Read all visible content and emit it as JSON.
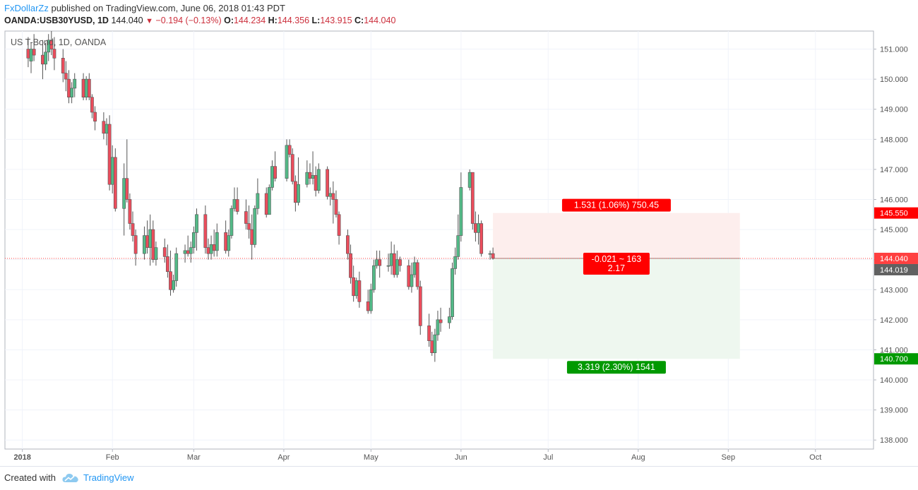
{
  "header": {
    "publisher": "FxDollarZz",
    "published_text": "published on TradingView.com, June 06, 2018 01:43 PDT",
    "symbol": "OANDA:USB30YUSD, 1D",
    "last": "144.040",
    "change": "−0.194 (−0.13%)",
    "open_label": "O:",
    "open": "144.234",
    "high_label": "H:",
    "high": "144.356",
    "low_label": "L:",
    "low": "143.915",
    "close_label": "C:",
    "close": "144.040"
  },
  "footer": {
    "created_with": "Created with",
    "brand": "TradingView"
  },
  "colors": {
    "up": "#53b987",
    "down": "#eb4d5c",
    "loss": "#ff0000",
    "profit": "#009900",
    "last_price": "#ff4040",
    "axis_text": "#555555"
  },
  "chart_data": {
    "type": "candlestick",
    "title": "US T-Bond, 1D, OANDA",
    "ylim": [
      137.7,
      151.6
    ],
    "y_ticks": [
      "138.000",
      "139.000",
      "140.000",
      "141.000",
      "142.000",
      "143.000",
      "144.000",
      "145.000",
      "146.000",
      "147.000",
      "148.000",
      "149.000",
      "150.000",
      "151.000"
    ],
    "x_ticks": [
      {
        "label": "2018",
        "date": "2018-01-01"
      },
      {
        "label": "Feb",
        "date": "2018-02-01"
      },
      {
        "label": "Mar",
        "date": "2018-03-01"
      },
      {
        "label": "Apr",
        "date": "2018-04-01"
      },
      {
        "label": "May",
        "date": "2018-05-01"
      },
      {
        "label": "Jun",
        "date": "2018-06-01"
      },
      {
        "label": "Jul",
        "date": "2018-07-01"
      },
      {
        "label": "Aug",
        "date": "2018-08-01"
      },
      {
        "label": "Sep",
        "date": "2018-09-01"
      },
      {
        "label": "Oct",
        "date": "2018-10-01"
      }
    ],
    "x_range": [
      "2017-12-26",
      "2018-10-21"
    ],
    "candles": [
      [
        "2018-01-03",
        151.0,
        151.4,
        150.4,
        150.7
      ],
      [
        "2018-01-04",
        150.6,
        151.2,
        150.2,
        151.0
      ],
      [
        "2018-01-05",
        151.0,
        151.5,
        150.6,
        150.8
      ],
      [
        "2018-01-08",
        150.8,
        151.3,
        150.0,
        150.5
      ],
      [
        "2018-01-09",
        150.5,
        151.2,
        150.3,
        150.9
      ],
      [
        "2018-01-10",
        150.9,
        151.5,
        150.6,
        151.3
      ],
      [
        "2018-01-11",
        151.3,
        151.6,
        150.8,
        151.0
      ],
      [
        "2018-01-12",
        151.0,
        151.4,
        150.3,
        150.7
      ],
      [
        "2018-01-15",
        150.7,
        151.0,
        149.9,
        150.2
      ],
      [
        "2018-01-16",
        150.2,
        150.6,
        149.6,
        150.0
      ],
      [
        "2018-01-17",
        150.0,
        150.3,
        149.2,
        149.4
      ],
      [
        "2018-01-18",
        149.4,
        149.9,
        149.2,
        149.7
      ],
      [
        "2018-01-19",
        149.7,
        150.2,
        149.4,
        150.0
      ],
      [
        "2018-01-22",
        150.0,
        150.2,
        149.3,
        149.4
      ],
      [
        "2018-01-23",
        149.4,
        150.1,
        149.3,
        150.0
      ],
      [
        "2018-01-24",
        150.0,
        150.2,
        149.3,
        149.4
      ],
      [
        "2018-01-25",
        149.4,
        149.5,
        148.7,
        148.9
      ],
      [
        "2018-01-26",
        148.9,
        149.1,
        148.3,
        148.6
      ],
      [
        "2018-01-29",
        148.6,
        148.9,
        148.0,
        148.2
      ],
      [
        "2018-01-30",
        148.2,
        148.7,
        147.8,
        148.5
      ],
      [
        "2018-01-31",
        148.5,
        148.8,
        146.3,
        146.5
      ],
      [
        "2018-02-01",
        146.5,
        147.8,
        146.2,
        147.4
      ],
      [
        "2018-02-02",
        147.4,
        147.7,
        145.6,
        145.7
      ],
      [
        "2018-02-05",
        145.7,
        147.2,
        144.8,
        146.7
      ],
      [
        "2018-02-06",
        146.7,
        148.0,
        145.9,
        146.0
      ],
      [
        "2018-02-07",
        146.0,
        146.2,
        145.0,
        145.2
      ],
      [
        "2018-02-08",
        145.2,
        145.6,
        144.6,
        144.8
      ],
      [
        "2018-02-09",
        144.8,
        145.0,
        143.8,
        144.2
      ],
      [
        "2018-02-12",
        144.2,
        145.1,
        144.0,
        144.8
      ],
      [
        "2018-02-13",
        144.8,
        145.3,
        144.2,
        144.4
      ],
      [
        "2018-02-14",
        144.4,
        145.5,
        143.8,
        145.0
      ],
      [
        "2018-02-15",
        145.0,
        145.3,
        143.9,
        144.0
      ],
      [
        "2018-02-16",
        144.0,
        144.6,
        143.8,
        144.4
      ],
      [
        "2018-02-19",
        144.4,
        144.7,
        143.9,
        144.1
      ],
      [
        "2018-02-20",
        144.1,
        144.5,
        143.4,
        143.6
      ],
      [
        "2018-02-21",
        143.6,
        144.3,
        142.8,
        143.0
      ],
      [
        "2018-02-22",
        143.0,
        143.5,
        142.9,
        143.3
      ],
      [
        "2018-02-23",
        143.3,
        144.4,
        143.1,
        144.2
      ],
      [
        "2018-02-26",
        144.2,
        144.5,
        143.9,
        144.3
      ],
      [
        "2018-02-27",
        144.3,
        144.8,
        144.1,
        144.2
      ],
      [
        "2018-02-28",
        144.2,
        144.6,
        143.9,
        144.4
      ],
      [
        "2018-03-01",
        144.4,
        145.1,
        144.2,
        144.9
      ],
      [
        "2018-03-02",
        144.9,
        145.7,
        144.3,
        145.5
      ],
      [
        "2018-03-05",
        145.5,
        145.8,
        144.2,
        144.4
      ],
      [
        "2018-03-06",
        144.4,
        144.7,
        144.0,
        144.2
      ],
      [
        "2018-03-07",
        144.2,
        144.8,
        144.0,
        144.5
      ],
      [
        "2018-03-08",
        144.5,
        145.0,
        144.1,
        144.3
      ],
      [
        "2018-03-09",
        144.3,
        145.2,
        144.1,
        144.9
      ],
      [
        "2018-03-12",
        144.9,
        145.3,
        144.2,
        144.3
      ],
      [
        "2018-03-13",
        144.3,
        145.0,
        144.1,
        144.8
      ],
      [
        "2018-03-14",
        144.8,
        145.8,
        144.7,
        145.7
      ],
      [
        "2018-03-15",
        145.7,
        146.4,
        145.6,
        146.0
      ],
      [
        "2018-03-16",
        146.0,
        146.4,
        145.5,
        145.6
      ],
      [
        "2018-03-19",
        145.6,
        146.0,
        145.0,
        145.2
      ],
      [
        "2018-03-20",
        145.2,
        145.8,
        144.7,
        145.0
      ],
      [
        "2018-03-21",
        145.0,
        145.5,
        144.0,
        144.5
      ],
      [
        "2018-03-22",
        144.5,
        145.8,
        144.4,
        145.7
      ],
      [
        "2018-03-23",
        145.7,
        146.7,
        145.5,
        146.2
      ],
      [
        "2018-03-26",
        146.2,
        146.4,
        145.4,
        145.5
      ],
      [
        "2018-03-27",
        145.5,
        146.5,
        145.5,
        146.4
      ],
      [
        "2018-03-28",
        146.4,
        147.3,
        146.3,
        147.1
      ],
      [
        "2018-03-29",
        147.1,
        147.6,
        146.6,
        146.7
      ],
      [
        "2018-04-02",
        146.7,
        148.0,
        146.6,
        147.8
      ],
      [
        "2018-04-03",
        147.8,
        148.0,
        147.4,
        147.5
      ],
      [
        "2018-04-04",
        147.5,
        147.7,
        146.5,
        146.6
      ],
      [
        "2018-04-05",
        146.6,
        146.8,
        145.6,
        145.9
      ],
      [
        "2018-04-06",
        145.9,
        147.4,
        145.8,
        146.5
      ],
      [
        "2018-04-09",
        146.5,
        147.3,
        146.4,
        146.9
      ],
      [
        "2018-04-10",
        146.9,
        147.2,
        146.5,
        146.7
      ],
      [
        "2018-04-11",
        146.7,
        147.6,
        146.5,
        146.8
      ],
      [
        "2018-04-12",
        146.8,
        147.1,
        146.1,
        146.3
      ],
      [
        "2018-04-13",
        146.3,
        147.2,
        146.2,
        147.0
      ],
      [
        "2018-04-16",
        147.0,
        147.1,
        146.0,
        146.1
      ],
      [
        "2018-04-17",
        146.1,
        146.4,
        145.8,
        146.2
      ],
      [
        "2018-04-18",
        146.2,
        146.6,
        145.2,
        146.0
      ],
      [
        "2018-04-19",
        146.0,
        146.3,
        145.4,
        145.5
      ],
      [
        "2018-04-20",
        145.5,
        145.6,
        144.5,
        144.8
      ],
      [
        "2018-04-23",
        144.8,
        145.0,
        144.0,
        144.2
      ],
      [
        "2018-04-24",
        144.2,
        144.5,
        143.2,
        143.4
      ],
      [
        "2018-04-25",
        143.4,
        143.8,
        142.6,
        142.8
      ],
      [
        "2018-04-26",
        142.8,
        143.4,
        142.7,
        143.3
      ],
      [
        "2018-04-27",
        143.3,
        143.6,
        142.4,
        142.6
      ],
      [
        "2018-04-30",
        142.6,
        143.0,
        142.2,
        142.3
      ],
      [
        "2018-05-01",
        142.3,
        143.2,
        142.2,
        143.0
      ],
      [
        "2018-05-02",
        143.0,
        144.0,
        142.9,
        143.8
      ],
      [
        "2018-05-03",
        143.8,
        144.3,
        143.7,
        144.0
      ],
      [
        "2018-05-04",
        144.0,
        144.3,
        143.4,
        143.8
      ],
      [
        "2018-05-07",
        143.8,
        144.2,
        143.6,
        143.8
      ],
      [
        "2018-05-08",
        143.8,
        144.6,
        143.5,
        144.2
      ],
      [
        "2018-05-09",
        144.2,
        144.5,
        143.4,
        143.5
      ],
      [
        "2018-05-10",
        143.5,
        144.3,
        143.4,
        144.0
      ],
      [
        "2018-05-11",
        144.0,
        144.1,
        143.6,
        143.8
      ],
      [
        "2018-05-14",
        143.8,
        144.0,
        143.0,
        143.1
      ],
      [
        "2018-05-15",
        143.1,
        143.9,
        142.9,
        143.5
      ],
      [
        "2018-05-16",
        143.5,
        144.1,
        143.4,
        143.9
      ],
      [
        "2018-05-17",
        143.9,
        144.0,
        143.0,
        143.1
      ],
      [
        "2018-05-18",
        143.1,
        143.3,
        141.5,
        141.8
      ],
      [
        "2018-05-21",
        141.8,
        142.2,
        141.1,
        141.3
      ],
      [
        "2018-05-22",
        141.3,
        141.6,
        140.8,
        140.9
      ],
      [
        "2018-05-23",
        140.9,
        141.7,
        140.6,
        141.5
      ],
      [
        "2018-05-24",
        141.5,
        142.3,
        141.3,
        142.0
      ],
      [
        "2018-05-25",
        142.0,
        142.4,
        141.6,
        141.9
      ],
      [
        "2018-05-28",
        141.9,
        142.4,
        141.7,
        142.1
      ],
      [
        "2018-05-29",
        142.1,
        143.9,
        142.0,
        143.7
      ],
      [
        "2018-05-30",
        143.7,
        144.4,
        143.5,
        144.1
      ],
      [
        "2018-05-31",
        144.1,
        145.5,
        144.0,
        144.8
      ],
      [
        "2018-06-01",
        144.8,
        146.9,
        144.6,
        146.4
      ],
      [
        "2018-06-04",
        146.4,
        147.0,
        146.3,
        146.9
      ],
      [
        "2018-06-05",
        146.9,
        146.9,
        145.0,
        145.2
      ],
      [
        "2018-06-06",
        145.2,
        145.6,
        144.6,
        144.9
      ],
      [
        "2018-06-07",
        144.9,
        145.5,
        144.5,
        145.2
      ],
      [
        "2018-06-08",
        145.2,
        145.3,
        144.1,
        144.2
      ],
      [
        "2018-06-11",
        144.2,
        144.3,
        144.0,
        144.2
      ],
      [
        "2018-06-12",
        144.2,
        144.4,
        144.0,
        144.04
      ]
    ],
    "last_price": "144.040",
    "prev_label": "144.019",
    "position": {
      "type": "short",
      "entry": 144.04,
      "stop": 145.55,
      "target": 140.7,
      "start": "2018-06-12",
      "end": "2018-09-05",
      "stop_label": "145.550",
      "target_label": "140.700",
      "risk_text": "1.531 (1.06%) 750.45",
      "mid_text": "-0.021 ~ 163",
      "ratio_text": "2.17",
      "reward_text": "3.319 (2.30%) 1541"
    }
  }
}
